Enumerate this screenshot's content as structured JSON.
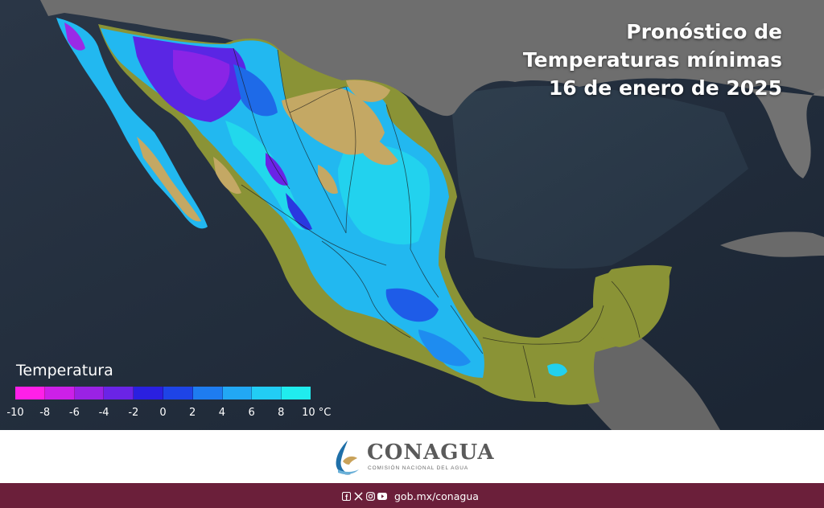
{
  "title": {
    "line1": "Pronóstico de",
    "line2": "Temperaturas mínimas",
    "line3": "16 de enero de 2025"
  },
  "legend": {
    "title": "Temperatura",
    "colors": [
      "#ff20e8",
      "#cc20e8",
      "#9a22e4",
      "#6a24e6",
      "#2a20e0",
      "#1e44e6",
      "#1e7cf0",
      "#22a8f4",
      "#22cdf4",
      "#20ecee"
    ],
    "ticks": [
      "-10",
      "-8",
      "-6",
      "-4",
      "-2",
      "0",
      "2",
      "4",
      "6",
      "8",
      "10 °C"
    ]
  },
  "brand": {
    "name": "CONAGUA",
    "subtitle": "COMISIÓN NACIONAL DEL AGUA"
  },
  "footer": {
    "url": "gob.mx/conagua",
    "icons": [
      "facebook-icon",
      "x-icon",
      "instagram-icon",
      "youtube-icon"
    ]
  },
  "colors": {
    "ocean": "#22303f",
    "land_foreign": "#6c6c6c",
    "warm_land": "#8a9336",
    "mild_land": "#c4a864",
    "footer_bar": "#6b1f3a"
  }
}
